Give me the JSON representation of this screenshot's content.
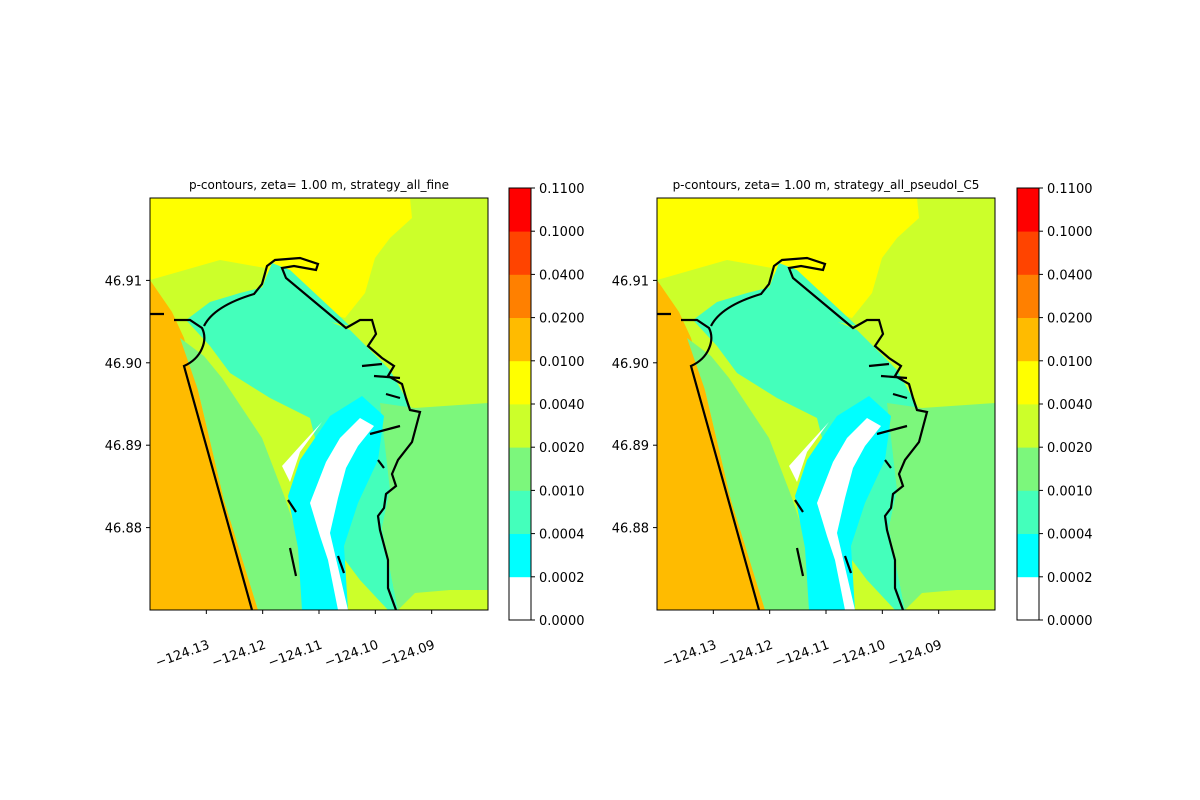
{
  "chart_data": [
    {
      "type": "heatmap",
      "title": "p-contours, zeta= 1.00 m, strategy_all_fine",
      "xlabel": "",
      "ylabel": "",
      "x_ticks": [
        "−124.13",
        "−124.12",
        "−124.11",
        "−124.10",
        "−124.09"
      ],
      "x_tick_values": [
        -124.13,
        -124.12,
        -124.11,
        -124.1,
        -124.09
      ],
      "y_ticks": [
        "46.88",
        "46.89",
        "46.90",
        "46.91"
      ],
      "y_tick_values": [
        46.88,
        46.89,
        46.9,
        46.91
      ],
      "xlim": [
        -124.14,
        -124.08
      ],
      "ylim": [
        46.87,
        46.92
      ],
      "colorbar": {
        "levels": [
          "0.0000",
          "0.0002",
          "0.0004",
          "0.0010",
          "0.0020",
          "0.0040",
          "0.0100",
          "0.0200",
          "0.0400",
          "0.1000",
          "0.1100"
        ],
        "colors": [
          "#ffffff",
          "#00ffff",
          "#44ffbb",
          "#7cf77c",
          "#ccff2a",
          "#ffff00",
          "#ffbb00",
          "#ff8000",
          "#ff4400",
          "#ff0000"
        ]
      }
    },
    {
      "type": "heatmap",
      "title": "p-contours, zeta= 1.00 m, strategy_all_pseudoI_C5",
      "xlabel": "",
      "ylabel": "",
      "x_ticks": [
        "−124.13",
        "−124.12",
        "−124.11",
        "−124.10",
        "−124.09"
      ],
      "x_tick_values": [
        -124.13,
        -124.12,
        -124.11,
        -124.1,
        -124.09
      ],
      "y_ticks": [
        "46.88",
        "46.89",
        "46.90",
        "46.91"
      ],
      "y_tick_values": [
        46.88,
        46.89,
        46.9,
        46.91
      ],
      "xlim": [
        -124.14,
        -124.08
      ],
      "ylim": [
        46.87,
        46.92
      ],
      "colorbar": {
        "levels": [
          "0.0000",
          "0.0002",
          "0.0004",
          "0.0010",
          "0.0020",
          "0.0040",
          "0.0100",
          "0.0200",
          "0.0400",
          "0.1000",
          "0.1100"
        ],
        "colors": [
          "#ffffff",
          "#00ffff",
          "#44ffbb",
          "#7cf77c",
          "#ccff2a",
          "#ffff00",
          "#ffbb00",
          "#ff8000",
          "#ff4400",
          "#ff0000"
        ]
      }
    }
  ]
}
